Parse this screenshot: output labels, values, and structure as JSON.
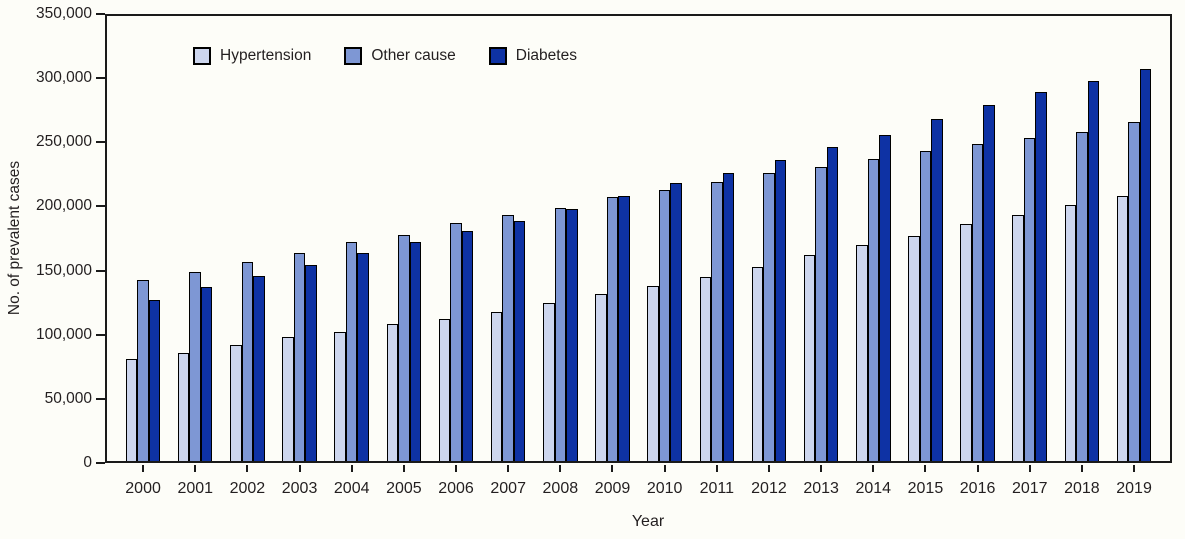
{
  "chart_data": {
    "type": "bar",
    "title": "",
    "xlabel": "Year",
    "ylabel": "No. of prevalent cases",
    "ylim": [
      0,
      350000
    ],
    "grid": false,
    "legend_position": "top-left-inside",
    "axis_color": "#1a1a1a",
    "background_color": "#fdfdf8",
    "categories": [
      "2000",
      "2001",
      "2002",
      "2003",
      "2004",
      "2005",
      "2006",
      "2007",
      "2008",
      "2009",
      "2010",
      "2011",
      "2012",
      "2013",
      "2014",
      "2015",
      "2016",
      "2017",
      "2018",
      "2019"
    ],
    "series": [
      {
        "name": "Hypertension",
        "color": "#cdd6ee",
        "values": [
          81000,
          86000,
          92000,
          98000,
          102000,
          108000,
          112000,
          118000,
          125000,
          132000,
          138000,
          145000,
          153000,
          162000,
          170000,
          177000,
          186000,
          193000,
          201000,
          208000
        ]
      },
      {
        "name": "Other cause",
        "color": "#7e97d4",
        "values": [
          143000,
          149000,
          157000,
          164000,
          172000,
          178000,
          187000,
          193000,
          199000,
          207000,
          213000,
          219000,
          226000,
          231000,
          237000,
          243000,
          249000,
          253000,
          258000,
          266000
        ]
      },
      {
        "name": "Diabetes",
        "color": "#0e32a4",
        "values": [
          127000,
          137000,
          146000,
          154000,
          164000,
          172000,
          181000,
          189000,
          198000,
          208000,
          218000,
          226000,
          236000,
          246000,
          256000,
          268000,
          279000,
          289000,
          298000,
          307000
        ]
      }
    ],
    "yticks": [
      {
        "value": 0,
        "label": "0"
      },
      {
        "value": 50000,
        "label": "50,000"
      },
      {
        "value": 100000,
        "label": "100,000"
      },
      {
        "value": 150000,
        "label": "150,000"
      },
      {
        "value": 200000,
        "label": "200,000"
      },
      {
        "value": 250000,
        "label": "250,000"
      },
      {
        "value": 300000,
        "label": "300,000"
      },
      {
        "value": 350000,
        "label": "350,000"
      }
    ]
  }
}
